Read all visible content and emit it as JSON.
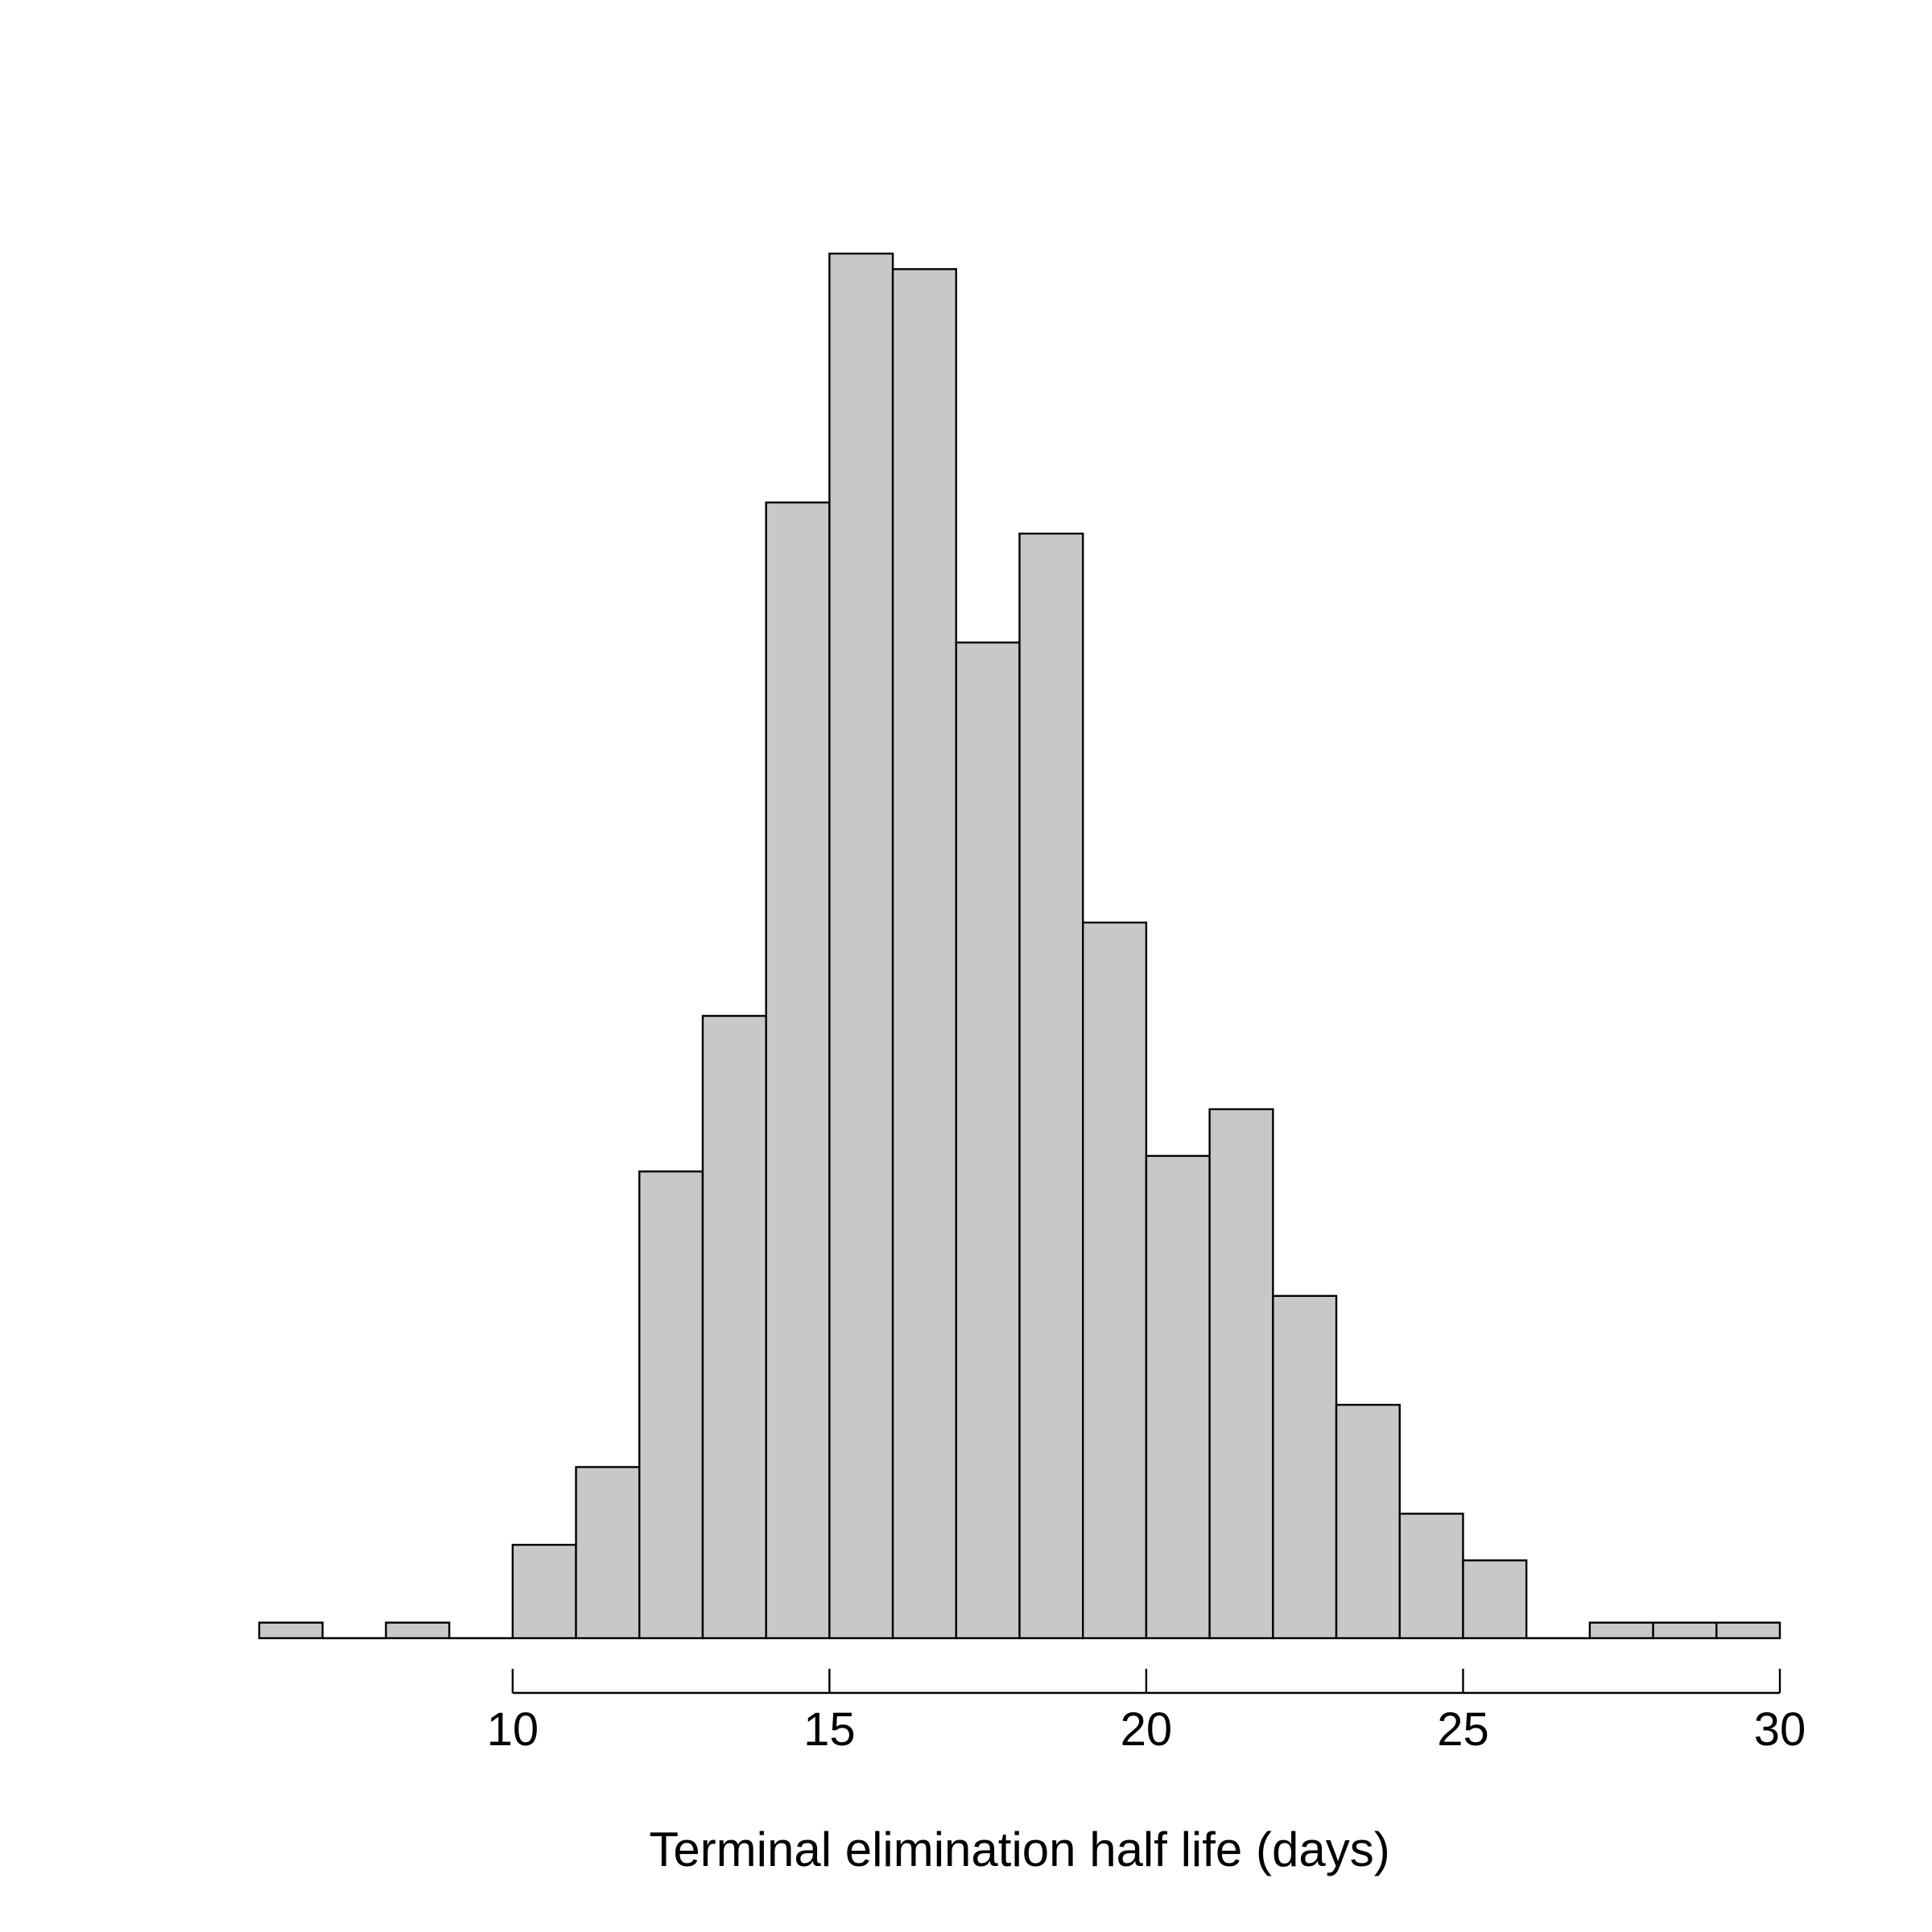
{
  "chart_data": {
    "type": "bar",
    "subtype": "histogram",
    "title": "",
    "xlabel": "Terminal elimination half life (days)",
    "ylabel": "",
    "xlim": [
      6,
      30
    ],
    "ylim": [
      0,
      89
    ],
    "y_axis_shown": false,
    "grid": false,
    "legend": "none",
    "bin_width": 1,
    "bins": [
      {
        "start": 6,
        "end": 7,
        "count": 1
      },
      {
        "start": 7,
        "end": 8,
        "count": 0
      },
      {
        "start": 8,
        "end": 9,
        "count": 1
      },
      {
        "start": 9,
        "end": 10,
        "count": 0
      },
      {
        "start": 10,
        "end": 11,
        "count": 6
      },
      {
        "start": 11,
        "end": 12,
        "count": 11
      },
      {
        "start": 12,
        "end": 13,
        "count": 30
      },
      {
        "start": 13,
        "end": 14,
        "count": 40
      },
      {
        "start": 14,
        "end": 15,
        "count": 73
      },
      {
        "start": 15,
        "end": 16,
        "count": 89
      },
      {
        "start": 16,
        "end": 17,
        "count": 88
      },
      {
        "start": 17,
        "end": 18,
        "count": 64
      },
      {
        "start": 18,
        "end": 19,
        "count": 71
      },
      {
        "start": 19,
        "end": 20,
        "count": 46
      },
      {
        "start": 20,
        "end": 21,
        "count": 31
      },
      {
        "start": 21,
        "end": 22,
        "count": 34
      },
      {
        "start": 22,
        "end": 23,
        "count": 22
      },
      {
        "start": 23,
        "end": 24,
        "count": 15
      },
      {
        "start": 24,
        "end": 25,
        "count": 8
      },
      {
        "start": 25,
        "end": 26,
        "count": 5
      },
      {
        "start": 26,
        "end": 27,
        "count": 0
      },
      {
        "start": 27,
        "end": 28,
        "count": 1
      },
      {
        "start": 28,
        "end": 29,
        "count": 1
      },
      {
        "start": 29,
        "end": 30,
        "count": 1
      }
    ],
    "x_ticks": [
      10,
      15,
      20,
      25,
      30
    ],
    "x_tick_labels": [
      "10",
      "15",
      "20",
      "25",
      "30"
    ],
    "colors": {
      "bar_fill": "#C8C8C8",
      "bar_stroke": "#000000",
      "axis": "#000000",
      "background": "#FFFFFF"
    }
  }
}
